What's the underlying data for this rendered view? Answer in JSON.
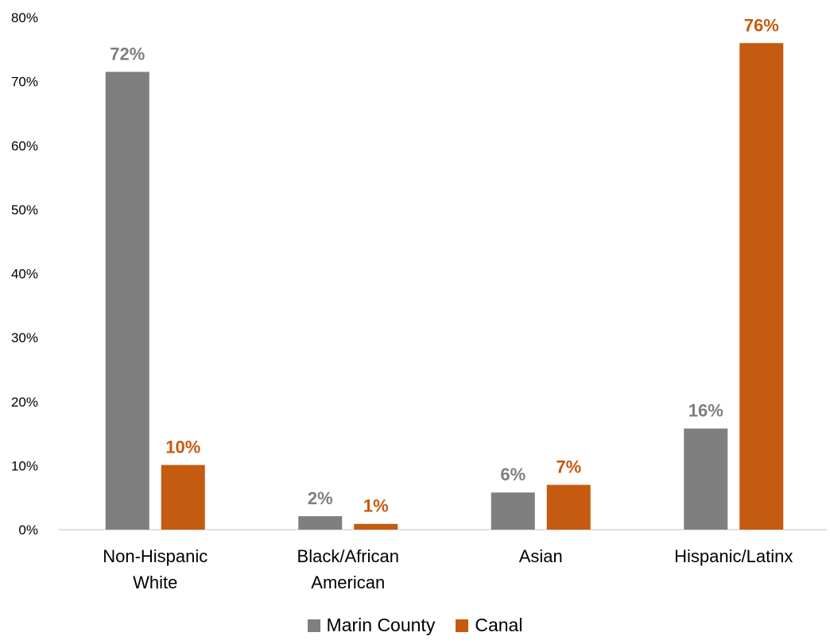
{
  "chart_data": {
    "type": "bar",
    "categories": [
      [
        "Non-Hispanic",
        "White"
      ],
      [
        "Black/African",
        "American"
      ],
      [
        "Asian"
      ],
      [
        "Hispanic/Latinx"
      ]
    ],
    "series": [
      {
        "name": "Marin County",
        "color": "#7f7f7f",
        "values": [
          71.5,
          2.1,
          5.8,
          15.8
        ],
        "data_labels": [
          "72%",
          "2%",
          "6%",
          "16%"
        ]
      },
      {
        "name": "Canal",
        "color": "#c55a11",
        "values": [
          10.1,
          0.9,
          7.0,
          76.0
        ],
        "data_labels": [
          "10%",
          "1%",
          "7%",
          "76%"
        ]
      }
    ],
    "ylim": [
      0,
      80
    ],
    "yticks": [
      0,
      10,
      20,
      30,
      40,
      50,
      60,
      70,
      80
    ],
    "ytick_labels": [
      "0%",
      "10%",
      "20%",
      "30%",
      "40%",
      "50%",
      "60%",
      "70%",
      "80%"
    ],
    "grid": false,
    "legend": {
      "position": "bottom",
      "entries": [
        "Marin County",
        "Canal"
      ]
    },
    "title": "",
    "xlabel": "",
    "ylabel": ""
  }
}
